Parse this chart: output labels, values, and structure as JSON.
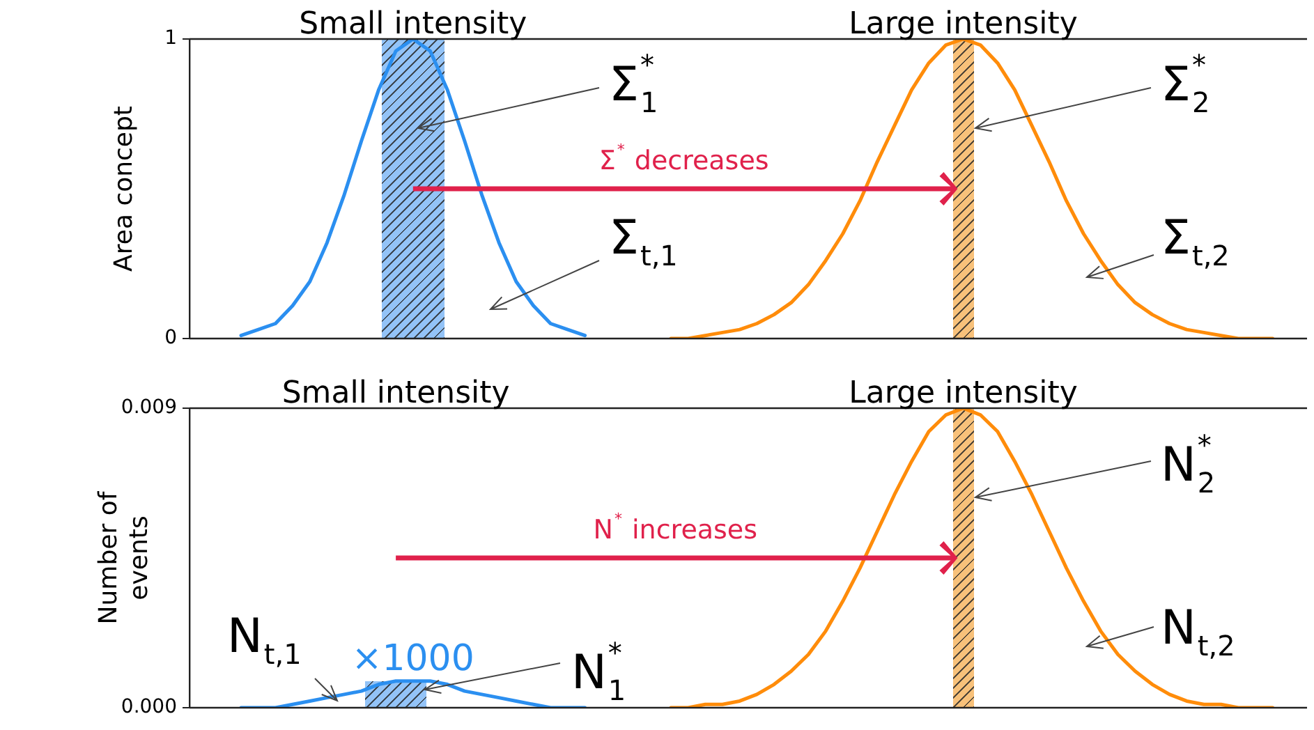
{
  "chart_data": [
    {
      "type": "line",
      "ylabel": "Area concept",
      "tick_labels": "y",
      "marker": "none",
      "legend": false,
      "categories": [
        null,
        null,
        null,
        null,
        null,
        null,
        null,
        null,
        null,
        null,
        null,
        null,
        null,
        null,
        null,
        null,
        null,
        null,
        null,
        null,
        null,
        null,
        null,
        null,
        null,
        null,
        null,
        null,
        null,
        null,
        null,
        null,
        null,
        null,
        null,
        null,
        null,
        null,
        null,
        null,
        null,
        null,
        null,
        null,
        null,
        null,
        null,
        null,
        null,
        null,
        null,
        null,
        null,
        null,
        null,
        null,
        null,
        null,
        null,
        null,
        null,
        null,
        null,
        null,
        null,
        null
      ],
      "ylim": [
        0,
        1
      ],
      "yticks": [
        0,
        1
      ],
      "series": [
        {
          "color": "#2b8ff0",
          "values": [
            null,
            null,
            null,
            0.01,
            0.03,
            0.05,
            0.11,
            0.19,
            0.32,
            0.48,
            0.66,
            0.83,
            0.96,
            1,
            0.96,
            0.83,
            0.66,
            0.48,
            0.32,
            0.19,
            0.11,
            0.05,
            0.03,
            0.01,
            null,
            null,
            null,
            null,
            null,
            null,
            null,
            null,
            null,
            null,
            null,
            null,
            null,
            null,
            null,
            null,
            null,
            null,
            null,
            null,
            null,
            null,
            null,
            null,
            null,
            null,
            null,
            null,
            null,
            null,
            null,
            null,
            null,
            null,
            null,
            null,
            null,
            null,
            null,
            null,
            null,
            null
          ]
        },
        {
          "color": "#ff8c0a",
          "values": [
            null,
            null,
            null,
            null,
            null,
            null,
            null,
            null,
            null,
            null,
            null,
            null,
            null,
            null,
            null,
            null,
            null,
            null,
            null,
            null,
            null,
            null,
            null,
            null,
            null,
            null,
            null,
            null,
            0,
            0,
            0.01,
            0.02,
            0.03,
            0.05,
            0.08,
            0.12,
            0.18,
            0.26,
            0.35,
            0.46,
            0.59,
            0.71,
            0.83,
            0.92,
            0.98,
            1,
            0.98,
            0.92,
            0.83,
            0.71,
            0.59,
            0.46,
            0.35,
            0.26,
            0.18,
            0.12,
            0.08,
            0.05,
            0.03,
            0.02,
            0.01,
            0,
            0,
            0,
            null,
            null
          ]
        }
      ],
      "annotations": [
        "Small intensity",
        "Large intensity",
        "Σ$^{*}$$_{1}$",
        "Σ$_{t,1}$",
        "Σ$^{*}$$_{2}$",
        "Σ$_{t,2}$",
        "Σ$^{*}$ decreases"
      ]
    },
    {
      "type": "line",
      "ylabel": "Number of events",
      "tick_labels": "y",
      "marker": "none",
      "legend": false,
      "categories": [
        null,
        null,
        null,
        null,
        null,
        null,
        null,
        null,
        null,
        null,
        null,
        null,
        null,
        null,
        null,
        null,
        null,
        null,
        null,
        null,
        null,
        null,
        null,
        null,
        null,
        null,
        null,
        null,
        null,
        null,
        null,
        null,
        null,
        null,
        null,
        null,
        null,
        null,
        null,
        null,
        null,
        null,
        null,
        null,
        null,
        null,
        null,
        null,
        null,
        null,
        null,
        null,
        null,
        null,
        null,
        null,
        null,
        null,
        null,
        null,
        null,
        null,
        null,
        null,
        null,
        null
      ],
      "ylim": [
        0,
        0.009
      ],
      "yticks": [
        {
          "value": 0,
          "label": "0.000"
        },
        {
          "value": 0.009,
          "label": "0.009"
        }
      ],
      "series": [
        {
          "name": "×1000",
          "color": "#2b8ff0",
          "values": [
            null,
            null,
            null,
            0,
            0,
            0,
            0.0001,
            0.0002,
            0.0003,
            0.0004,
            0.0005,
            0.0007,
            0.0008,
            0.0008,
            0.0008,
            0.0007,
            0.0005,
            0.0004,
            0.0003,
            0.0002,
            0.0001,
            0,
            0,
            0,
            null,
            null,
            null,
            null,
            null,
            null,
            null,
            null,
            null,
            null,
            null,
            null,
            null,
            null,
            null,
            null,
            null,
            null,
            null,
            null,
            null,
            null,
            null,
            null,
            null,
            null,
            null,
            null,
            null,
            null,
            null,
            null,
            null,
            null,
            null,
            null,
            null,
            null,
            null,
            null,
            null,
            null
          ]
        },
        {
          "color": "#ff8c0a",
          "values": [
            null,
            null,
            null,
            null,
            null,
            null,
            null,
            null,
            null,
            null,
            null,
            null,
            null,
            null,
            null,
            null,
            null,
            null,
            null,
            null,
            null,
            null,
            null,
            null,
            null,
            null,
            null,
            null,
            0,
            0,
            0.0001,
            0.0001,
            0.0002,
            0.0004,
            0.0007,
            0.0011,
            0.0016,
            0.0023,
            0.0032,
            0.0042,
            0.0053,
            0.0064,
            0.0074,
            0.0083,
            0.0088,
            0.009,
            0.0088,
            0.0083,
            0.0074,
            0.0064,
            0.0053,
            0.0042,
            0.0032,
            0.0023,
            0.0016,
            0.0011,
            0.0007,
            0.0004,
            0.0002,
            0.0001,
            0.0001,
            0,
            0,
            0,
            null,
            null
          ]
        }
      ],
      "annotations": [
        "Small intensity",
        "Large intensity",
        "N$_{t,1}$",
        "N$^{*}$$_{1}$",
        "N$^{*}$$_{2}$",
        "N$_{t,2}$",
        "N$^{*}$ increases"
      ]
    }
  ]
}
